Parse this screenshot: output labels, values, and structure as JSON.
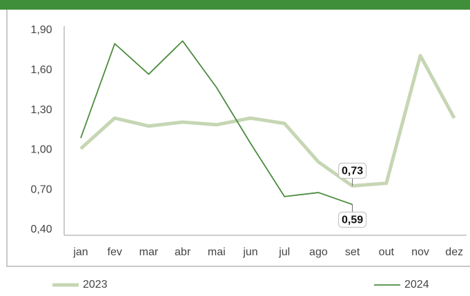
{
  "chart_data": {
    "type": "line",
    "categories": [
      "jan",
      "fev",
      "mar",
      "abr",
      "mai",
      "jun",
      "jul",
      "ago",
      "set",
      "out",
      "nov",
      "dez"
    ],
    "series": [
      {
        "name": "2023",
        "color": "#c6d6b4",
        "width": 5,
        "values": [
          1.01,
          1.24,
          1.18,
          1.21,
          1.19,
          1.24,
          1.2,
          0.91,
          0.73,
          0.75,
          1.71,
          1.24
        ],
        "value_labels": [
          null,
          null,
          null,
          null,
          null,
          null,
          null,
          null,
          "0,73",
          null,
          null,
          null
        ]
      },
      {
        "name": "2024",
        "color": "#4a8c3c",
        "width": 1.8,
        "values": [
          1.09,
          1.8,
          1.57,
          1.82,
          1.47,
          1.05,
          0.65,
          0.68,
          0.59,
          null,
          null,
          null
        ],
        "value_labels": [
          null,
          null,
          null,
          null,
          null,
          null,
          null,
          null,
          "0,59",
          null,
          null,
          null
        ]
      }
    ],
    "ylim": [
      0.4,
      1.9
    ],
    "yticks": [
      {
        "value": 0.4,
        "label": "0,40"
      },
      {
        "value": 0.7,
        "label": "0,70"
      },
      {
        "value": 1.0,
        "label": "1,00"
      },
      {
        "value": 1.3,
        "label": "1,30"
      },
      {
        "value": 1.6,
        "label": "1,60"
      },
      {
        "value": 1.9,
        "label": "1,90"
      }
    ]
  }
}
